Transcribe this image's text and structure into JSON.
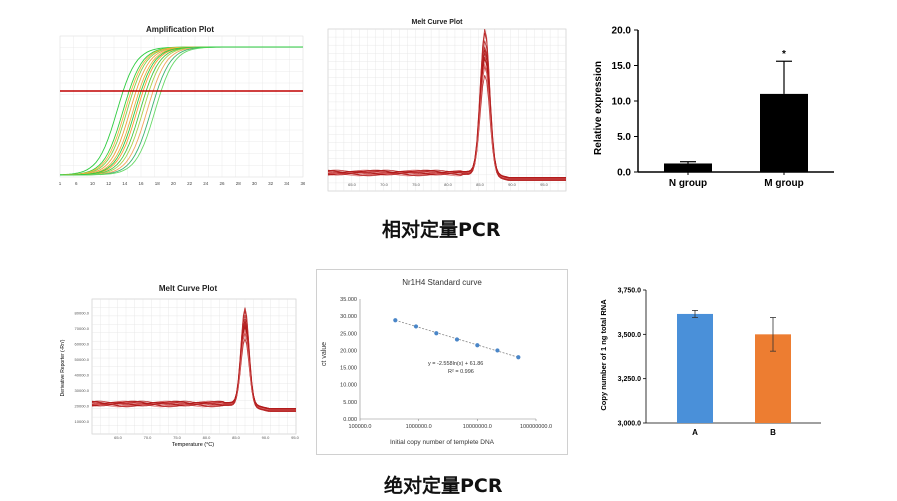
{
  "sections": {
    "relative_title": "相对定量PCR",
    "absolute_title": "绝对定量PCR"
  },
  "panels": {
    "amp": {
      "title": "Amplification Plot",
      "x_ticks": [
        "1",
        "6",
        "10",
        "12",
        "14",
        "16",
        "18",
        "20",
        "22",
        "24",
        "26",
        "28",
        "30",
        "32",
        "34",
        "36"
      ]
    },
    "melt1": {
      "title": "Melt Curve Plot",
      "x_ticks": [
        "65.0",
        "70.0",
        "75.0",
        "80.0",
        "85.0",
        "90.0",
        "95.0"
      ]
    },
    "melt2": {
      "title": "Melt Curve Plot",
      "ylabel": "Derivative Reporter (-Rn')",
      "xlabel": "Temperature (°C)",
      "y_ticks": [
        "10000.0",
        "20000.0",
        "30000.0",
        "40000.0",
        "50000.0",
        "60000.0",
        "70000.0",
        "80000.0"
      ],
      "x_ticks": [
        "65.0",
        "70.0",
        "75.0",
        "80.0",
        "85.0",
        "90.0",
        "95.0"
      ]
    }
  },
  "chart_data": [
    {
      "type": "bar",
      "ylabel": "Relative expression",
      "categories": [
        "N group",
        "M group"
      ],
      "values": [
        1.2,
        11.0
      ],
      "errors": [
        0.25,
        4.6
      ],
      "annotations": [
        "",
        "*"
      ],
      "ylim": [
        0,
        20
      ],
      "y_ticks": [
        "0.0",
        "5.0",
        "10.0",
        "15.0",
        "20.0"
      ],
      "colors": [
        "#000000",
        "#000000"
      ]
    },
    {
      "type": "scatter",
      "title": "Nr1H4 Standard curve",
      "xlabel": "Initial copy number  of templete DNA",
      "ylabel": "ct value",
      "x_log": true,
      "x_ticks": [
        "100000.0",
        "1000000.0",
        "10000000.0",
        "100000000.0"
      ],
      "y_ticks": [
        "0.000",
        "5.000",
        "10.000",
        "15.000",
        "20.000",
        "25.000",
        "30.000",
        "35.000"
      ],
      "ylim": [
        0,
        35
      ],
      "x": [
        400000,
        900000,
        2000000,
        4500000,
        10000000,
        22000000,
        50000000
      ],
      "y": [
        28.8,
        27.0,
        25.0,
        23.2,
        21.5,
        20.0,
        18.0
      ],
      "equation": "y = -2.558ln(x) + 61.86",
      "r2": "R² = 0.996",
      "colors": [
        "#4a86c8"
      ]
    },
    {
      "type": "bar",
      "ylabel": "Copy number of 1 ng total RNA",
      "categories": [
        "A",
        "B"
      ],
      "values": [
        3615,
        3500
      ],
      "errors": [
        20,
        95
      ],
      "ylim": [
        3000,
        3750
      ],
      "y_ticks": [
        "3,000.0",
        "3,250.0",
        "3,500.0",
        "3,750.0"
      ],
      "colors": [
        "#4a90d9",
        "#ed7d31"
      ]
    }
  ]
}
